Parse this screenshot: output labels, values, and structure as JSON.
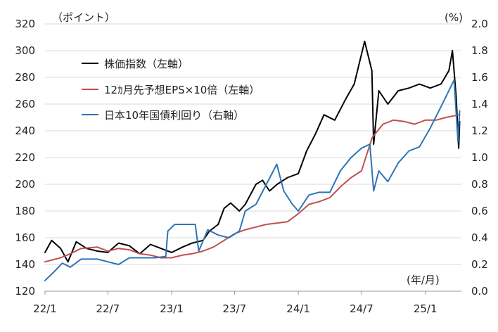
{
  "chart_data": {
    "type": "line",
    "left_axis_unit": "（ポイント）",
    "right_axis_unit": "(%)",
    "x_axis_unit": "(年/月)",
    "x_tick_labels": [
      "22/1",
      "22/7",
      "23/1",
      "23/7",
      "24/1",
      "24/7",
      "25/1"
    ],
    "left_ylim": [
      120,
      320
    ],
    "left_yticks": [
      120,
      140,
      160,
      180,
      200,
      220,
      240,
      260,
      280,
      300,
      320
    ],
    "right_ylim": [
      0.0,
      2.0
    ],
    "right_yticks": [
      "0.0",
      "0.2",
      "0.4",
      "0.6",
      "0.8",
      "1.0",
      "1.2",
      "1.4",
      "1.6",
      "1.8",
      "2.0"
    ],
    "grid": "horizontal",
    "legend_position": "top-left",
    "series": [
      {
        "name": "株価指数（左軸）",
        "axis": "left",
        "color": "#000000",
        "points": [
          [
            "2022-01-01",
            149
          ],
          [
            "2022-01-20",
            158
          ],
          [
            "2022-02-15",
            152
          ],
          [
            "2022-03-08",
            142
          ],
          [
            "2022-04-01",
            157
          ],
          [
            "2022-05-01",
            152
          ],
          [
            "2022-06-01",
            150
          ],
          [
            "2022-07-01",
            149
          ],
          [
            "2022-08-01",
            156
          ],
          [
            "2022-09-01",
            154
          ],
          [
            "2022-10-01",
            148
          ],
          [
            "2022-11-01",
            155
          ],
          [
            "2022-12-01",
            152
          ],
          [
            "2023-01-01",
            149
          ],
          [
            "2023-02-01",
            153
          ],
          [
            "2023-03-01",
            156
          ],
          [
            "2023-04-01",
            158
          ],
          [
            "2023-04-20",
            165
          ],
          [
            "2023-05-15",
            170
          ],
          [
            "2023-06-01",
            182
          ],
          [
            "2023-06-20",
            186
          ],
          [
            "2023-07-15",
            180
          ],
          [
            "2023-08-01",
            185
          ],
          [
            "2023-09-01",
            200
          ],
          [
            "2023-09-20",
            203
          ],
          [
            "2023-10-10",
            195
          ],
          [
            "2023-11-01",
            200
          ],
          [
            "2023-12-01",
            205
          ],
          [
            "2024-01-01",
            208
          ],
          [
            "2024-01-25",
            225
          ],
          [
            "2024-02-20",
            238
          ],
          [
            "2024-03-15",
            252
          ],
          [
            "2024-04-15",
            248
          ],
          [
            "2024-05-15",
            263
          ],
          [
            "2024-06-10",
            275
          ],
          [
            "2024-07-10",
            307
          ],
          [
            "2024-07-31",
            285
          ],
          [
            "2024-08-05",
            230
          ],
          [
            "2024-08-20",
            270
          ],
          [
            "2024-09-15",
            260
          ],
          [
            "2024-10-15",
            270
          ],
          [
            "2024-11-15",
            272
          ],
          [
            "2024-12-15",
            275
          ],
          [
            "2025-01-15",
            272
          ],
          [
            "2025-02-15",
            275
          ],
          [
            "2025-03-10",
            285
          ],
          [
            "2025-03-20",
            300
          ],
          [
            "2025-03-31",
            265
          ],
          [
            "2025-04-07",
            227
          ],
          [
            "2025-04-10",
            247
          ]
        ]
      },
      {
        "name": "12ｶ月先予想EPS×10倍（左軸）",
        "axis": "left",
        "color": "#c0504d",
        "points": [
          [
            "2022-01-01",
            142
          ],
          [
            "2022-02-15",
            145
          ],
          [
            "2022-03-15",
            148
          ],
          [
            "2022-04-15",
            152
          ],
          [
            "2022-06-01",
            153
          ],
          [
            "2022-07-01",
            150
          ],
          [
            "2022-08-01",
            152
          ],
          [
            "2022-09-01",
            151
          ],
          [
            "2022-10-01",
            148
          ],
          [
            "2022-11-01",
            147
          ],
          [
            "2022-12-01",
            145
          ],
          [
            "2023-01-01",
            145
          ],
          [
            "2023-02-01",
            147
          ],
          [
            "2023-03-01",
            148
          ],
          [
            "2023-04-01",
            150
          ],
          [
            "2023-05-01",
            153
          ],
          [
            "2023-06-01",
            158
          ],
          [
            "2023-07-01",
            163
          ],
          [
            "2023-08-01",
            166
          ],
          [
            "2023-09-01",
            168
          ],
          [
            "2023-10-01",
            170
          ],
          [
            "2023-11-01",
            171
          ],
          [
            "2023-12-01",
            172
          ],
          [
            "2024-01-01",
            178
          ],
          [
            "2024-02-01",
            185
          ],
          [
            "2024-03-01",
            187
          ],
          [
            "2024-04-01",
            190
          ],
          [
            "2024-05-01",
            198
          ],
          [
            "2024-06-01",
            205
          ],
          [
            "2024-07-01",
            210
          ],
          [
            "2024-08-01",
            235
          ],
          [
            "2024-09-01",
            245
          ],
          [
            "2024-10-01",
            248
          ],
          [
            "2024-11-01",
            247
          ],
          [
            "2024-12-01",
            245
          ],
          [
            "2025-01-01",
            248
          ],
          [
            "2025-02-01",
            248
          ],
          [
            "2025-03-01",
            250
          ],
          [
            "2025-04-10",
            252
          ]
        ]
      },
      {
        "name": "日本10年国債利回り（右軸）",
        "axis": "right",
        "color": "#2e75b6",
        "points": [
          [
            "2022-01-01",
            0.08
          ],
          [
            "2022-01-25",
            0.14
          ],
          [
            "2022-02-20",
            0.21
          ],
          [
            "2022-03-15",
            0.18
          ],
          [
            "2022-04-15",
            0.24
          ],
          [
            "2022-06-01",
            0.24
          ],
          [
            "2022-07-01",
            0.22
          ],
          [
            "2022-08-01",
            0.2
          ],
          [
            "2022-09-01",
            0.25
          ],
          [
            "2022-10-15",
            0.25
          ],
          [
            "2022-11-15",
            0.25
          ],
          [
            "2022-12-15",
            0.26
          ],
          [
            "2022-12-21",
            0.45
          ],
          [
            "2023-01-10",
            0.5
          ],
          [
            "2023-02-01",
            0.5
          ],
          [
            "2023-03-10",
            0.5
          ],
          [
            "2023-03-20",
            0.3
          ],
          [
            "2023-04-15",
            0.46
          ],
          [
            "2023-05-15",
            0.42
          ],
          [
            "2023-06-15",
            0.4
          ],
          [
            "2023-07-15",
            0.45
          ],
          [
            "2023-08-01",
            0.6
          ],
          [
            "2023-09-01",
            0.65
          ],
          [
            "2023-10-01",
            0.8
          ],
          [
            "2023-10-31",
            0.95
          ],
          [
            "2023-11-20",
            0.75
          ],
          [
            "2023-12-15",
            0.65
          ],
          [
            "2024-01-01",
            0.6
          ],
          [
            "2024-02-01",
            0.72
          ],
          [
            "2024-03-01",
            0.74
          ],
          [
            "2024-04-01",
            0.74
          ],
          [
            "2024-05-01",
            0.9
          ],
          [
            "2024-06-01",
            1.0
          ],
          [
            "2024-07-01",
            1.07
          ],
          [
            "2024-07-25",
            1.1
          ],
          [
            "2024-08-05",
            0.75
          ],
          [
            "2024-08-20",
            0.9
          ],
          [
            "2024-09-15",
            0.82
          ],
          [
            "2024-10-15",
            0.96
          ],
          [
            "2024-11-15",
            1.05
          ],
          [
            "2024-12-15",
            1.08
          ],
          [
            "2025-01-15",
            1.22
          ],
          [
            "2025-02-15",
            1.38
          ],
          [
            "2025-03-25",
            1.58
          ],
          [
            "2025-04-05",
            1.12
          ],
          [
            "2025-04-10",
            1.35
          ]
        ]
      }
    ]
  }
}
